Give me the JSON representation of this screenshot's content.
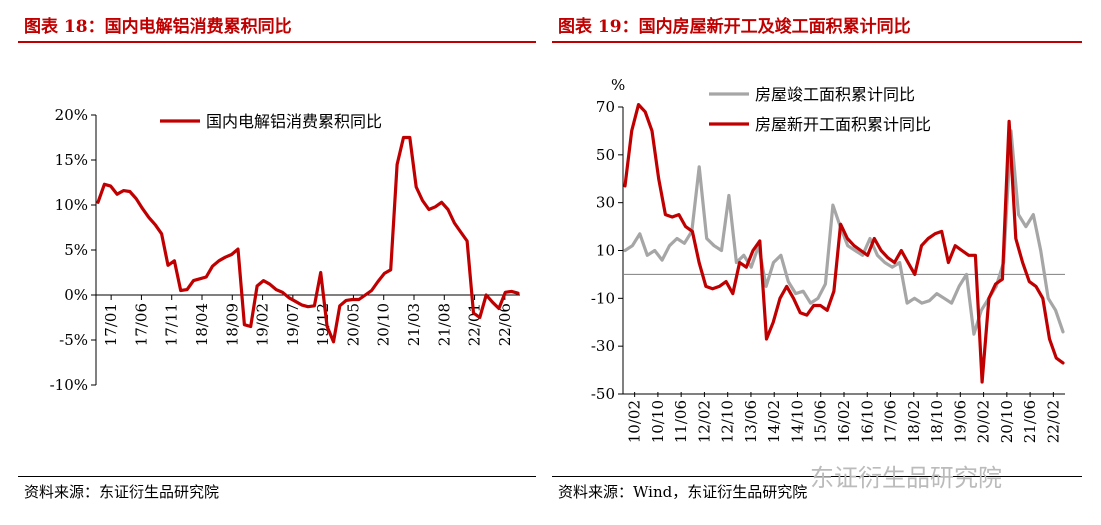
{
  "left": {
    "title": "图表 18：国内电解铝消费累积同比",
    "source": "资料来源：东证衍生品研究院",
    "chart_data": {
      "type": "line",
      "y_format": "percent",
      "ylim": [
        -10,
        20
      ],
      "yticks": [
        -10,
        -5,
        0,
        5,
        10,
        15,
        20
      ],
      "x_ticks": [
        "17/01",
        "17/06",
        "17/11",
        "18/04",
        "18/09",
        "19/02",
        "19/07",
        "19/12",
        "20/05",
        "20/10",
        "21/03",
        "21/08",
        "22/01",
        "22/06"
      ],
      "series": [
        {
          "name": "国内电解铝消费累积同比",
          "color": "#c00000",
          "values": [
            10.3,
            12.3,
            12.1,
            11.2,
            11.6,
            11.5,
            10.7,
            9.6,
            8.6,
            7.8,
            6.8,
            3.3,
            3.8,
            0.5,
            0.6,
            1.6,
            1.8,
            2.0,
            3.2,
            3.8,
            4.2,
            4.5,
            5.1,
            -3.3,
            -3.5,
            1.0,
            1.6,
            1.2,
            0.6,
            0.3,
            -0.3,
            -0.7,
            -1.1,
            -1.3,
            -1.2,
            2.5,
            -3.5,
            -5.2,
            -1.2,
            -0.6,
            -0.5,
            -0.5,
            0.0,
            0.5,
            1.5,
            2.4,
            2.8,
            14.5,
            17.5,
            17.5,
            12.0,
            10.5,
            9.5,
            9.8,
            10.3,
            9.5,
            8.0,
            7.0,
            6.0,
            -2.0,
            -2.5,
            0.0,
            -0.8,
            -1.5,
            0.3,
            0.4,
            0.2
          ]
        }
      ]
    }
  },
  "right": {
    "title": "图表 19：国内房屋新开工及竣工面积累计同比",
    "source": "资料来源：Wind，东证衍生品研究院",
    "chart_data": {
      "type": "line",
      "y_unit": "%",
      "ylim": [
        -50,
        70
      ],
      "yticks": [
        -50,
        -30,
        -10,
        10,
        30,
        50,
        70
      ],
      "x_ticks": [
        "10/02",
        "10/10",
        "11/06",
        "12/02",
        "12/10",
        "13/06",
        "14/02",
        "14/10",
        "15/06",
        "16/02",
        "16/10",
        "17/06",
        "18/02",
        "18/10",
        "19/06",
        "20/02",
        "20/10",
        "21/06",
        "22/02"
      ],
      "series": [
        {
          "name": "房屋竣工面积累计同比",
          "color": "#a6a6a6",
          "values": [
            10,
            12,
            17,
            8,
            10,
            6,
            12,
            15,
            13,
            18,
            45,
            15,
            12,
            10,
            33,
            5,
            8,
            3,
            12,
            -5,
            5,
            8,
            -3,
            -8,
            -7,
            -12,
            -10,
            -4,
            29,
            20,
            12,
            10,
            8,
            15,
            8,
            5,
            3,
            5,
            -12,
            -10,
            -12,
            -11,
            -8,
            -10,
            -12,
            -5,
            0,
            -25,
            -15,
            -10,
            -5,
            5,
            60,
            25,
            20,
            25,
            10,
            -10,
            -15,
            -24
          ]
        },
        {
          "name": "房屋新开工面积累计同比",
          "color": "#c00000",
          "values": [
            37,
            60,
            71,
            68,
            60,
            40,
            25,
            24,
            25,
            20,
            18,
            5,
            -5,
            -6,
            -5,
            -3,
            -8,
            5,
            3,
            10,
            14,
            -27,
            -20,
            -10,
            -5,
            -10,
            -16,
            -17,
            -13,
            -13,
            -15,
            -7,
            21,
            15,
            12,
            10,
            8,
            15,
            10,
            7,
            5,
            10,
            5,
            0,
            12,
            15,
            17,
            18,
            5,
            12,
            10,
            8,
            8,
            -45,
            -10,
            -4,
            -2,
            64,
            15,
            5,
            -3,
            -5,
            -10,
            -27,
            -35,
            -37
          ]
        }
      ]
    }
  },
  "watermark": "东证衍生品研究院"
}
